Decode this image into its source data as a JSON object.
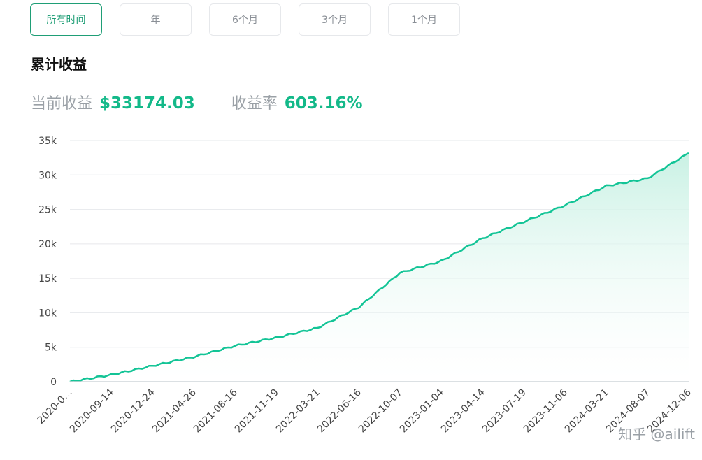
{
  "tabs": [
    {
      "label": "所有时间",
      "active": true
    },
    {
      "label": "年",
      "active": false
    },
    {
      "label": "6个月",
      "active": false
    },
    {
      "label": "3个月",
      "active": false
    },
    {
      "label": "1个月",
      "active": false
    }
  ],
  "title": "累计收益",
  "stats": {
    "profit_label": "当前收益",
    "profit_value": "$33174.03",
    "rate_label": "收益率",
    "rate_value": "603.16%"
  },
  "watermark": "知乎 @ailift",
  "colors": {
    "accent": "#13b989",
    "line": "#13c496",
    "fill_top": "#c9f1e4",
    "grid": "#e6e8eb"
  },
  "chart_data": {
    "type": "area",
    "title": "",
    "xlabel": "",
    "ylabel": "",
    "ylim": [
      0,
      35000
    ],
    "grid": true,
    "y_ticks": [
      "0",
      "5k",
      "10k",
      "15k",
      "20k",
      "25k",
      "30k",
      "35k"
    ],
    "x_tick_labels": [
      "2020-0…",
      "2020-09-14",
      "2020-12-24",
      "2021-04-26",
      "2021-08-16",
      "2021-11-19",
      "2022-03-21",
      "2022-06-16",
      "2022-10-07",
      "2023-01-04",
      "2023-04-14",
      "2023-07-19",
      "2023-11-06",
      "2024-03-21",
      "2024-08-07",
      "2024-12-06"
    ],
    "x": [
      "2020-06-01",
      "2020-09-14",
      "2020-12-24",
      "2021-04-26",
      "2021-08-16",
      "2021-11-19",
      "2022-03-21",
      "2022-06-16",
      "2022-10-07",
      "2023-01-04",
      "2023-04-14",
      "2023-07-19",
      "2023-11-06",
      "2024-03-21",
      "2024-08-07",
      "2024-12-06"
    ],
    "series": [
      {
        "values": [
          0,
          1000,
          2300,
          3600,
          5200,
          6400,
          7800,
          10800,
          15800,
          17500,
          20800,
          23200,
          25600,
          28400,
          29500,
          33174.03
        ]
      }
    ]
  }
}
